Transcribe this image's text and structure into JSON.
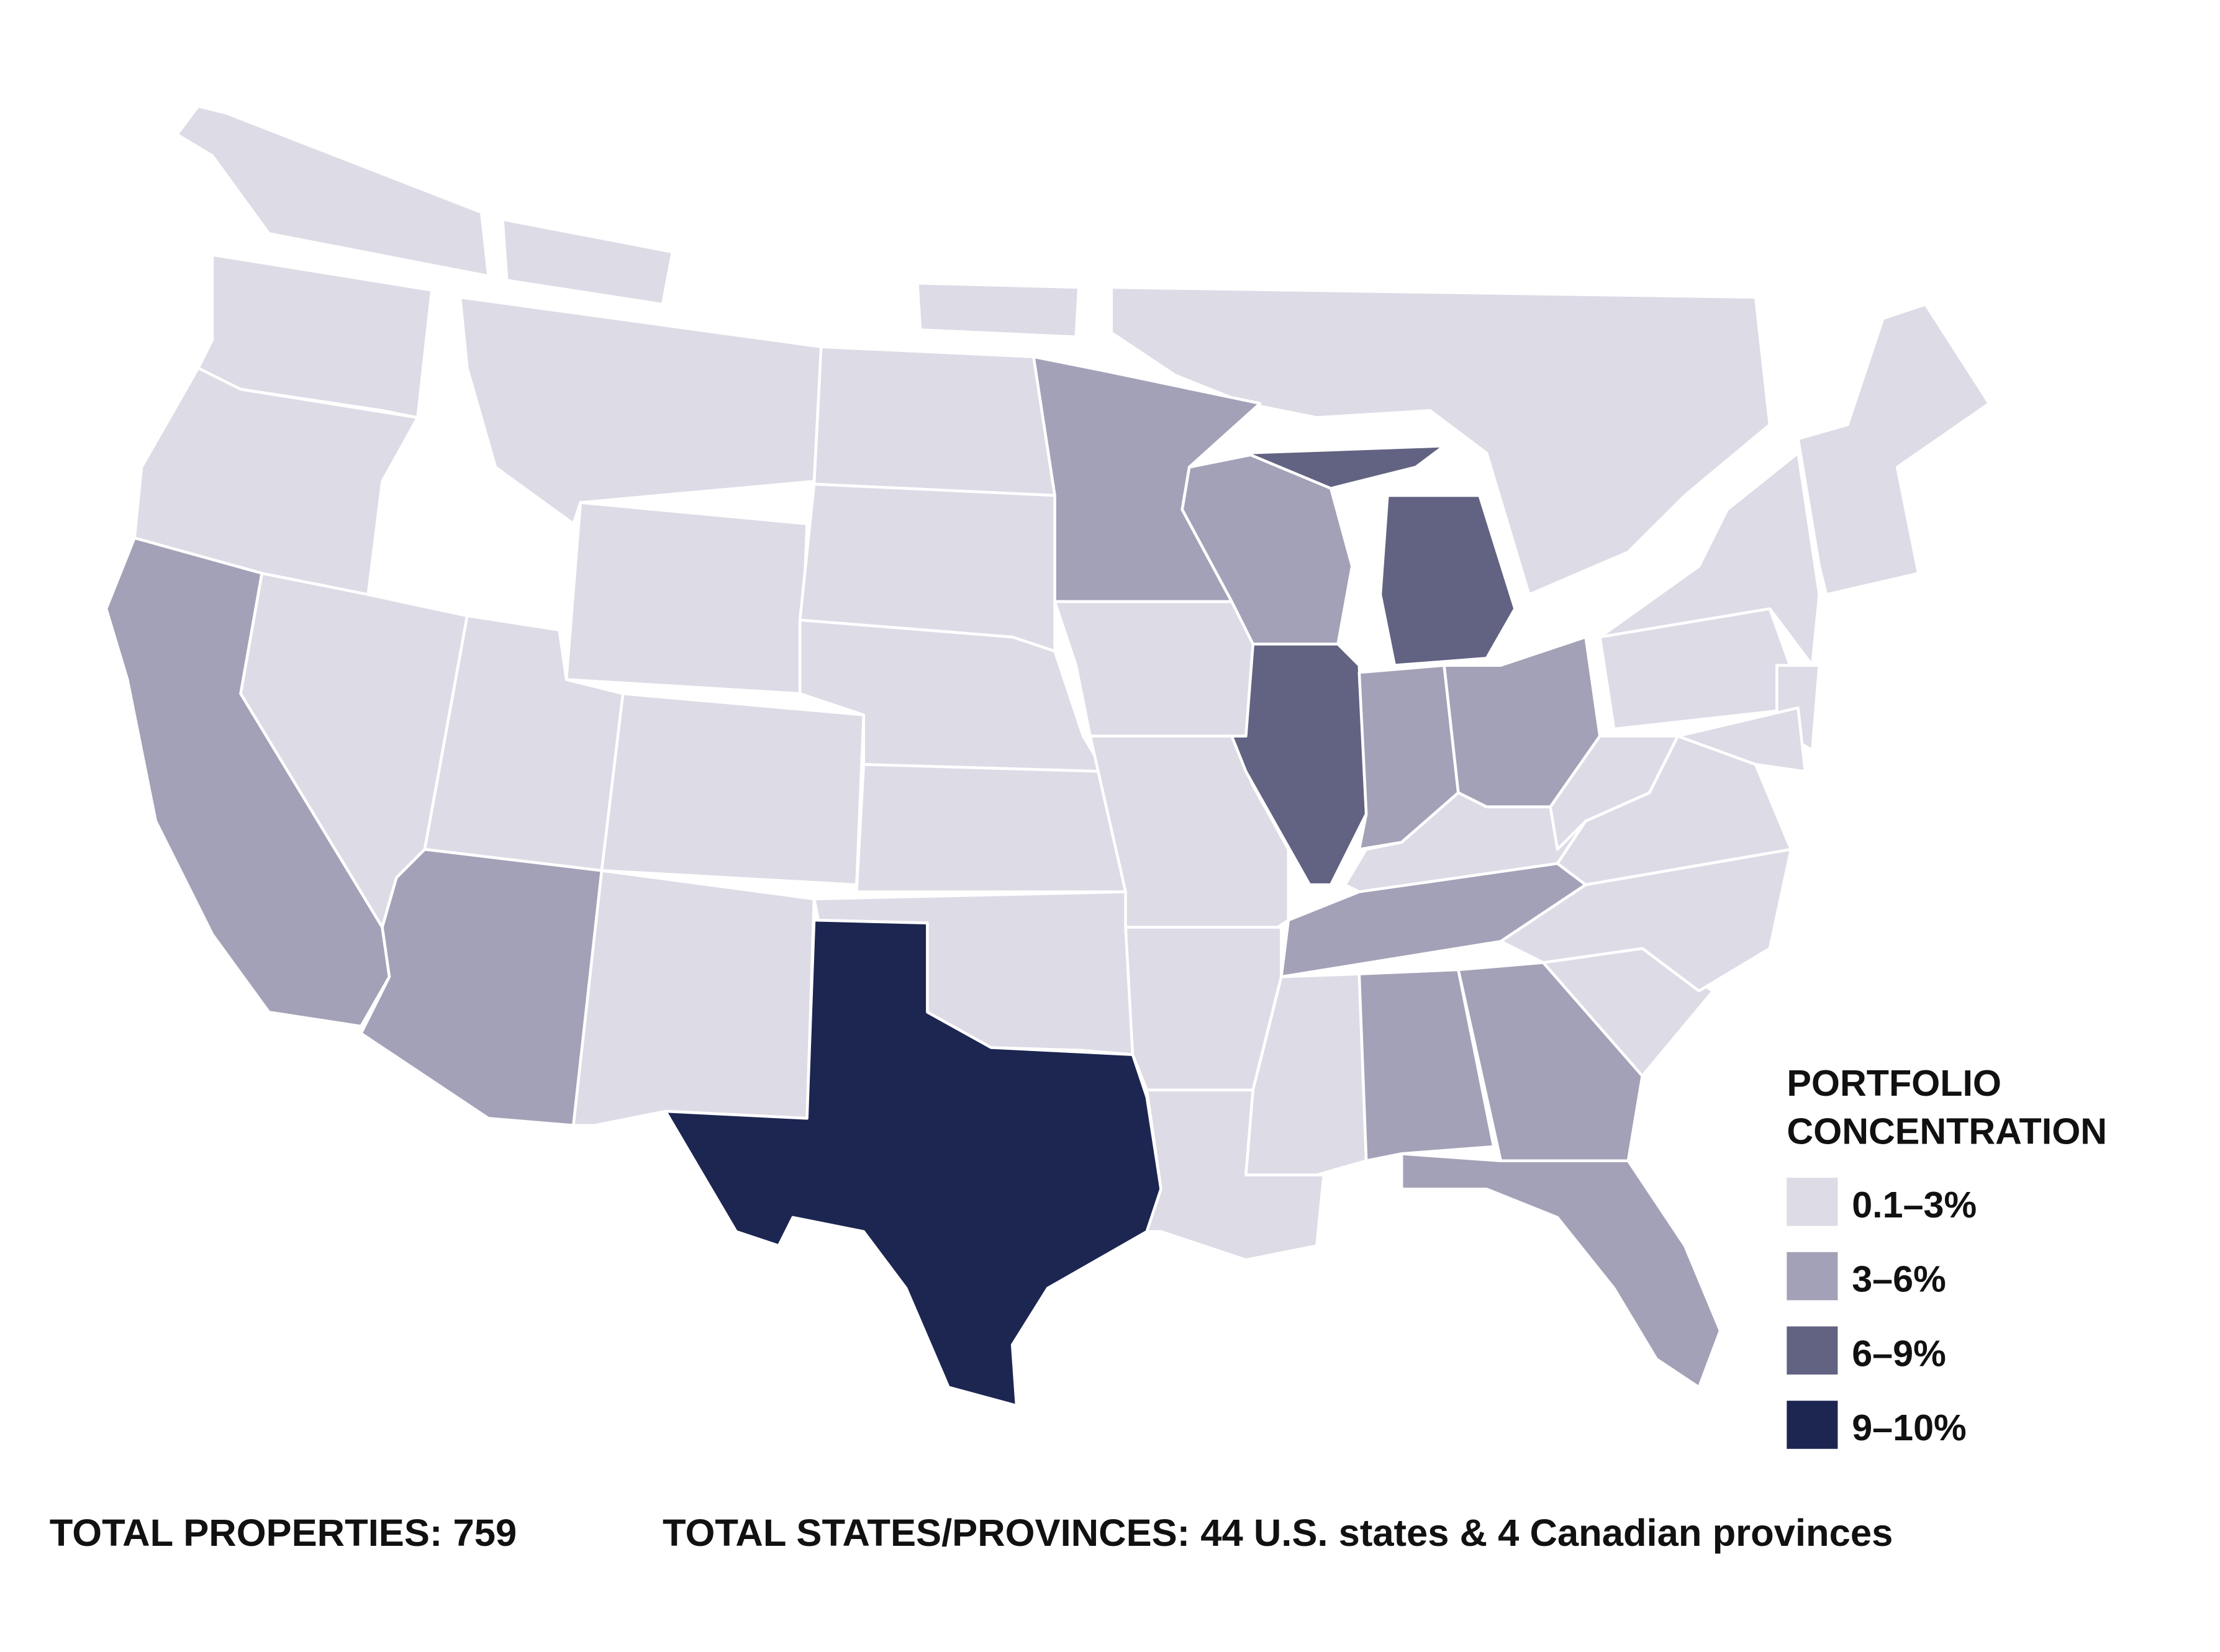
{
  "legend": {
    "title_lines": [
      "PORTFOLIO",
      "CONCENTRATION"
    ],
    "items": [
      {
        "label": "0.1–3%",
        "color": "#dcdbe6"
      },
      {
        "label": "3–6%",
        "color": "#a3a1b7"
      },
      {
        "label": "6–9%",
        "color": "#626282"
      },
      {
        "label": "9–10%",
        "color": "#1c2651"
      }
    ]
  },
  "footer": {
    "properties": "TOTAL PROPERTIES: 759",
    "states": "TOTAL STATES/PROVINCES: 44 U.S. states & 4 Canadian provinces"
  }
}
